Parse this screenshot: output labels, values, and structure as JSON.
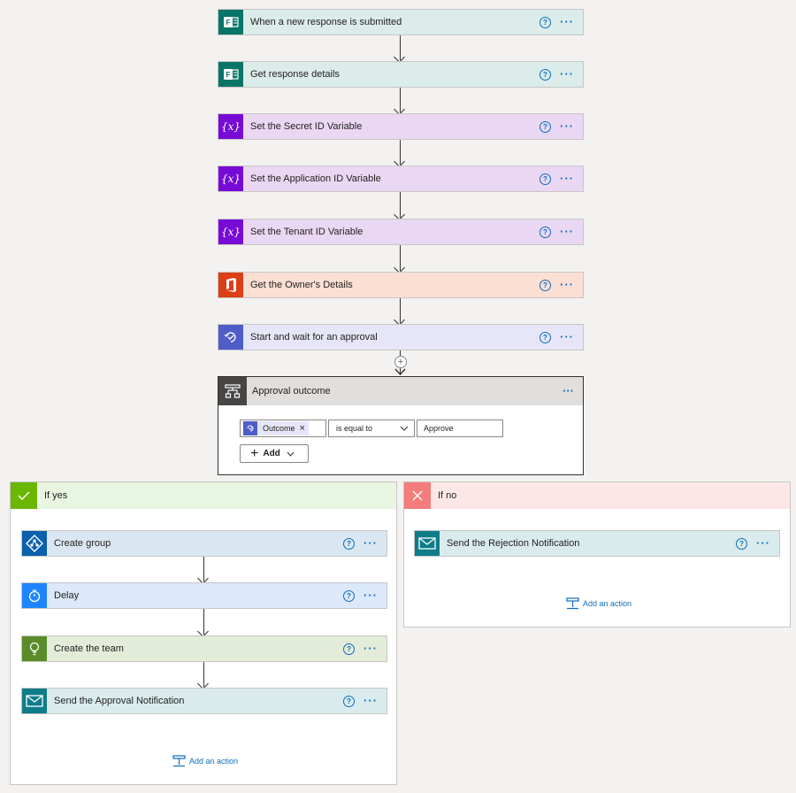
{
  "steps": [
    {
      "title": "When a new response is submitted",
      "icon": "forms-icon"
    },
    {
      "title": "Get response details",
      "icon": "forms-icon"
    },
    {
      "title": "Set the Secret ID Variable",
      "icon": "variable-icon"
    },
    {
      "title": "Set the Application ID Variable",
      "icon": "variable-icon"
    },
    {
      "title": "Set the Tenant ID Variable",
      "icon": "variable-icon"
    },
    {
      "title": "Get the Owner's Details",
      "icon": "office365-icon"
    },
    {
      "title": "Start and wait for an approval",
      "icon": "approval-icon"
    }
  ],
  "variable_glyph": "{x}",
  "help_glyph": "?",
  "more_glyph": "···",
  "condition": {
    "title": "Approval outcome",
    "token": "Outcome",
    "remove_glyph": "×",
    "operator": "is equal to",
    "value": "Approve",
    "add_label": "Add"
  },
  "yes_branch": {
    "title": "If yes",
    "steps": [
      {
        "title": "Create group",
        "icon": "azure-ad-icon"
      },
      {
        "title": "Delay",
        "icon": "timer-icon"
      },
      {
        "title": "Create the team",
        "icon": "lightbulb-icon"
      },
      {
        "title": "Send the Approval Notification",
        "icon": "mail-icon"
      }
    ],
    "add_action": "Add an action"
  },
  "no_branch": {
    "title": "If no",
    "steps": [
      {
        "title": "Send the Rejection Notification",
        "icon": "mail-icon"
      }
    ],
    "add_action": "Add an action"
  },
  "colors": {
    "forms": "#077568",
    "variables": "#770bd6",
    "office": "#dc3e15",
    "approvals": "#4f5dc9",
    "condition": "#484644",
    "yes": "#6bb700",
    "no": "#f47c7c",
    "link": "#0f6cbd"
  }
}
